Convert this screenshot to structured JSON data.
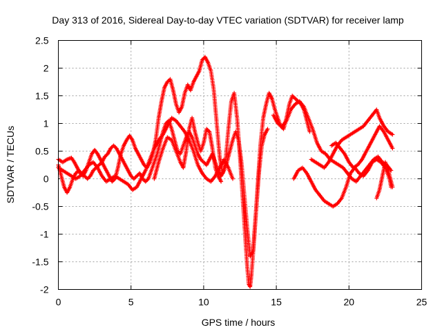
{
  "chart_data": {
    "type": "scatter",
    "title": "Day 313 of 2016, Sidereal Day-to-day VTEC variation (SDTVAR) for receiver lamp",
    "xlabel": "GPS time / hours",
    "ylabel": "SDTVAR / TECUs",
    "xlim": [
      0,
      25
    ],
    "ylim": [
      -2,
      2.5
    ],
    "xticks": [
      "0",
      "5",
      "10",
      "15",
      "20",
      "25"
    ],
    "yticks": [
      "2.5",
      "2",
      "1.5",
      "1",
      "0.5",
      "0",
      "-0.5",
      "-1",
      "-1.5",
      "-2"
    ],
    "grid": true,
    "marker": "plus",
    "color": "#ff0000",
    "series": [
      {
        "points": [
          [
            0.0,
            0.35
          ],
          [
            0.3,
            0.3
          ],
          [
            0.6,
            0.35
          ],
          [
            0.9,
            0.38
          ],
          [
            1.1,
            0.3
          ],
          [
            1.3,
            0.2
          ],
          [
            1.5,
            0.1
          ],
          [
            1.7,
            0.05
          ],
          [
            1.9,
            0.15
          ],
          [
            2.1,
            0.3
          ],
          [
            2.3,
            0.45
          ],
          [
            2.5,
            0.52
          ],
          [
            2.7,
            0.45
          ],
          [
            2.9,
            0.35
          ],
          [
            3.1,
            0.25
          ],
          [
            3.3,
            0.15
          ],
          [
            3.5,
            0.05
          ],
          [
            3.7,
            -0.05
          ],
          [
            3.9,
            0.0
          ],
          [
            4.1,
            0.2
          ],
          [
            4.3,
            0.45
          ],
          [
            4.5,
            0.6
          ],
          [
            4.7,
            0.7
          ],
          [
            4.9,
            0.78
          ],
          [
            5.1,
            0.7
          ],
          [
            5.3,
            0.55
          ],
          [
            5.5,
            0.45
          ],
          [
            5.7,
            0.35
          ],
          [
            5.9,
            0.25
          ],
          [
            6.1,
            0.2
          ],
          [
            6.3,
            0.3
          ],
          [
            6.5,
            0.45
          ],
          [
            6.7,
            0.7
          ],
          [
            6.9,
            1.1
          ],
          [
            7.1,
            1.4
          ],
          [
            7.3,
            1.65
          ],
          [
            7.5,
            1.75
          ],
          [
            7.7,
            1.8
          ],
          [
            7.9,
            1.6
          ],
          [
            8.1,
            1.35
          ],
          [
            8.3,
            1.2
          ],
          [
            8.5,
            1.3
          ],
          [
            8.7,
            1.55
          ],
          [
            8.9,
            1.7
          ],
          [
            9.1,
            1.6
          ],
          [
            9.3,
            1.75
          ],
          [
            9.5,
            1.85
          ],
          [
            9.7,
            1.95
          ],
          [
            9.9,
            2.15
          ],
          [
            10.1,
            2.2
          ],
          [
            10.3,
            2.1
          ],
          [
            10.5,
            1.95
          ],
          [
            10.7,
            1.6
          ],
          [
            10.9,
            1.0
          ],
          [
            11.1,
            0.4
          ],
          [
            11.3,
            0.1
          ],
          [
            11.5,
            0.3
          ],
          [
            11.7,
            0.9
          ],
          [
            11.9,
            1.4
          ],
          [
            12.1,
            1.55
          ],
          [
            12.3,
            1.1
          ],
          [
            12.5,
            0.4
          ],
          [
            12.7,
            -0.4
          ],
          [
            12.9,
            -1.2
          ],
          [
            13.0,
            -1.6
          ],
          [
            13.1,
            -1.9
          ],
          [
            13.2,
            -1.95
          ],
          [
            13.3,
            -1.7
          ],
          [
            13.5,
            -1.0
          ],
          [
            13.7,
            -0.2
          ],
          [
            13.9,
            0.6
          ],
          [
            14.1,
            1.1
          ],
          [
            14.3,
            1.35
          ],
          [
            14.5,
            1.55
          ],
          [
            14.7,
            1.45
          ],
          [
            14.9,
            1.25
          ],
          [
            15.1,
            1.1
          ],
          [
            15.3,
            0.95
          ],
          [
            15.5,
            0.9
          ],
          [
            15.7,
            1.1
          ],
          [
            15.9,
            1.35
          ],
          [
            16.1,
            1.5
          ],
          [
            16.3,
            1.45
          ],
          [
            16.5,
            1.4
          ],
          [
            16.7,
            1.35
          ],
          [
            16.9,
            1.25
          ],
          [
            17.1,
            1.05
          ],
          [
            17.3,
            0.85
          ]
        ]
      },
      {
        "points": [
          [
            0.0,
            0.25
          ],
          [
            0.2,
            0.05
          ],
          [
            0.4,
            -0.15
          ],
          [
            0.6,
            -0.25
          ],
          [
            0.8,
            -0.15
          ],
          [
            1.0,
            0.0
          ],
          [
            1.2,
            0.1
          ],
          [
            1.4,
            0.15
          ],
          [
            1.6,
            0.1
          ],
          [
            1.8,
            0.05
          ],
          [
            2.0,
            0.0
          ],
          [
            2.2,
            0.05
          ],
          [
            2.4,
            0.15
          ],
          [
            2.6,
            0.2
          ],
          [
            2.8,
            0.25
          ],
          [
            3.0,
            0.3
          ],
          [
            3.2,
            0.4
          ],
          [
            3.4,
            0.45
          ],
          [
            3.6,
            0.55
          ],
          [
            3.8,
            0.6
          ],
          [
            4.0,
            0.55
          ],
          [
            4.2,
            0.45
          ],
          [
            4.4,
            0.35
          ],
          [
            4.6,
            0.25
          ],
          [
            4.8,
            0.15
          ],
          [
            5.0,
            0.05
          ],
          [
            5.2,
            0.0
          ],
          [
            5.4,
            0.05
          ],
          [
            5.6,
            0.1
          ],
          [
            5.8,
            0.0
          ],
          [
            6.0,
            -0.05
          ],
          [
            6.2,
            0.0
          ],
          [
            6.4,
            0.15
          ],
          [
            6.6,
            0.3
          ],
          [
            6.8,
            0.45
          ],
          [
            7.0,
            0.65
          ],
          [
            7.2,
            0.85
          ],
          [
            7.4,
            1.0
          ],
          [
            7.6,
            1.05
          ],
          [
            7.8,
            0.9
          ],
          [
            8.0,
            0.7
          ],
          [
            8.2,
            0.5
          ],
          [
            8.4,
            0.45
          ],
          [
            8.6,
            0.6
          ],
          [
            8.8,
            0.75
          ],
          [
            9.0,
            0.85
          ],
          [
            9.2,
            0.75
          ],
          [
            9.4,
            0.6
          ],
          [
            9.6,
            0.45
          ],
          [
            9.8,
            0.35
          ],
          [
            10.0,
            0.3
          ],
          [
            10.2,
            0.25
          ],
          [
            10.4,
            0.35
          ],
          [
            10.6,
            0.45
          ],
          [
            10.8,
            0.3
          ],
          [
            11.0,
            0.15
          ],
          [
            11.2,
            0.05
          ],
          [
            11.4,
            0.15
          ],
          [
            11.6,
            0.3
          ],
          [
            11.8,
            0.5
          ],
          [
            12.0,
            0.7
          ],
          [
            12.2,
            0.85
          ],
          [
            12.4,
            0.7
          ],
          [
            12.6,
            0.3
          ],
          [
            12.8,
            -0.3
          ],
          [
            13.0,
            -0.9
          ],
          [
            13.2,
            -1.4
          ],
          [
            13.4,
            -1.3
          ],
          [
            13.6,
            -0.6
          ],
          [
            13.8,
            0.1
          ],
          [
            14.0,
            0.6
          ],
          [
            14.2,
            0.8
          ],
          [
            14.4,
            0.9
          ]
        ]
      },
      {
        "points": [
          [
            0.0,
            0.2
          ],
          [
            0.3,
            0.15
          ],
          [
            0.6,
            0.1
          ],
          [
            0.9,
            0.05
          ],
          [
            1.2,
            0.0
          ],
          [
            1.5,
            0.05
          ],
          [
            1.8,
            0.15
          ],
          [
            2.1,
            0.25
          ],
          [
            2.4,
            0.3
          ],
          [
            2.7,
            0.2
          ],
          [
            3.0,
            0.05
          ],
          [
            3.3,
            -0.05
          ],
          [
            3.6,
            0.0
          ],
          [
            3.9,
            0.05
          ],
          [
            4.2,
            0.0
          ],
          [
            4.5,
            -0.05
          ],
          [
            4.8,
            -0.1
          ],
          [
            5.1,
            -0.2
          ],
          [
            5.4,
            -0.15
          ],
          [
            5.7,
            0.0
          ],
          [
            6.0,
            0.15
          ],
          [
            6.3,
            0.35
          ],
          [
            6.6,
            0.55
          ],
          [
            6.9,
            0.7
          ],
          [
            7.2,
            0.8
          ],
          [
            7.5,
            0.95
          ],
          [
            7.8,
            1.1
          ],
          [
            8.1,
            1.05
          ],
          [
            8.4,
            0.95
          ],
          [
            8.7,
            0.85
          ],
          [
            9.0,
            0.7
          ],
          [
            9.3,
            0.5
          ],
          [
            9.6,
            0.25
          ],
          [
            9.9,
            0.1
          ],
          [
            10.2,
            0.0
          ],
          [
            10.5,
            -0.05
          ],
          [
            10.8,
            0.05
          ],
          [
            11.1,
            0.2
          ],
          [
            11.4,
            0.35
          ],
          [
            11.7,
            0.2
          ],
          [
            12.0,
            0.0
          ]
        ]
      },
      {
        "points": [
          [
            6.6,
            0.0
          ],
          [
            6.9,
            0.3
          ],
          [
            7.2,
            0.55
          ],
          [
            7.5,
            0.75
          ],
          [
            7.8,
            0.7
          ],
          [
            8.1,
            0.5
          ],
          [
            8.4,
            0.3
          ],
          [
            8.6,
            0.2
          ],
          [
            8.8,
            0.5
          ],
          [
            9.0,
            0.9
          ],
          [
            9.2,
            1.1
          ],
          [
            9.4,
            0.85
          ],
          [
            9.6,
            0.65
          ],
          [
            9.8,
            0.5
          ],
          [
            10.0,
            0.65
          ],
          [
            10.2,
            0.9
          ],
          [
            10.4,
            0.85
          ],
          [
            10.6,
            0.55
          ],
          [
            10.8,
            0.2
          ],
          [
            11.0,
            0.05
          ],
          [
            11.2,
            -0.05
          ]
        ]
      },
      {
        "points": [
          [
            14.8,
            1.15
          ],
          [
            15.1,
            1.0
          ],
          [
            15.4,
            0.95
          ],
          [
            15.7,
            1.05
          ],
          [
            16.0,
            1.25
          ],
          [
            16.3,
            1.35
          ],
          [
            16.6,
            1.4
          ],
          [
            16.9,
            1.3
          ],
          [
            17.2,
            1.1
          ],
          [
            17.5,
            0.9
          ],
          [
            17.8,
            0.65
          ],
          [
            18.1,
            0.5
          ],
          [
            18.4,
            0.45
          ],
          [
            18.7,
            0.35
          ],
          [
            19.0,
            0.3
          ],
          [
            19.3,
            0.25
          ],
          [
            19.6,
            0.2
          ],
          [
            19.9,
            0.1
          ],
          [
            20.2,
            0.0
          ],
          [
            20.5,
            -0.05
          ],
          [
            20.8,
            0.05
          ],
          [
            21.1,
            0.15
          ],
          [
            21.4,
            0.25
          ],
          [
            21.7,
            0.35
          ],
          [
            22.0,
            0.4
          ],
          [
            22.3,
            0.3
          ],
          [
            22.6,
            0.25
          ],
          [
            22.9,
            0.15
          ]
        ]
      },
      {
        "points": [
          [
            16.2,
            0.0
          ],
          [
            16.5,
            0.15
          ],
          [
            16.8,
            0.2
          ],
          [
            17.1,
            0.1
          ],
          [
            17.4,
            -0.05
          ],
          [
            17.7,
            -0.2
          ],
          [
            18.0,
            -0.3
          ],
          [
            18.3,
            -0.4
          ],
          [
            18.6,
            -0.45
          ],
          [
            18.9,
            -0.5
          ],
          [
            19.2,
            -0.45
          ],
          [
            19.5,
            -0.35
          ],
          [
            19.8,
            -0.15
          ],
          [
            20.1,
            0.1
          ],
          [
            20.4,
            0.2
          ],
          [
            20.7,
            0.1
          ],
          [
            21.0,
            0.05
          ],
          [
            21.3,
            0.15
          ],
          [
            21.6,
            0.3
          ],
          [
            21.9,
            0.35
          ],
          [
            22.2,
            0.3
          ],
          [
            22.5,
            0.2
          ],
          [
            22.8,
            0.0
          ],
          [
            22.9,
            -0.15
          ]
        ]
      },
      {
        "points": [
          [
            17.4,
            0.35
          ],
          [
            17.7,
            0.3
          ],
          [
            18.0,
            0.25
          ],
          [
            18.3,
            0.2
          ],
          [
            18.6,
            0.3
          ],
          [
            18.9,
            0.45
          ],
          [
            19.2,
            0.6
          ],
          [
            19.5,
            0.7
          ],
          [
            19.8,
            0.75
          ],
          [
            20.1,
            0.8
          ],
          [
            20.4,
            0.85
          ],
          [
            20.7,
            0.9
          ],
          [
            21.0,
            0.95
          ],
          [
            21.3,
            1.05
          ],
          [
            21.6,
            1.15
          ],
          [
            21.9,
            1.25
          ],
          [
            22.1,
            1.1
          ],
          [
            22.4,
            0.95
          ],
          [
            22.7,
            0.85
          ],
          [
            23.0,
            0.8
          ]
        ]
      },
      {
        "points": [
          [
            18.8,
            0.6
          ],
          [
            19.1,
            0.65
          ],
          [
            19.4,
            0.55
          ],
          [
            19.7,
            0.45
          ],
          [
            20.0,
            0.3
          ],
          [
            20.3,
            0.2
          ],
          [
            20.6,
            0.25
          ],
          [
            20.9,
            0.35
          ],
          [
            21.2,
            0.5
          ],
          [
            21.5,
            0.65
          ],
          [
            21.8,
            0.8
          ],
          [
            22.1,
            0.95
          ],
          [
            22.4,
            0.85
          ],
          [
            22.7,
            0.7
          ],
          [
            23.0,
            0.55
          ]
        ]
      },
      {
        "points": [
          [
            21.9,
            -0.35
          ],
          [
            22.1,
            -0.2
          ],
          [
            22.3,
            0.05
          ],
          [
            22.5,
            0.3
          ],
          [
            22.7,
            0.15
          ],
          [
            22.9,
            -0.05
          ],
          [
            23.0,
            -0.15
          ]
        ]
      }
    ]
  }
}
